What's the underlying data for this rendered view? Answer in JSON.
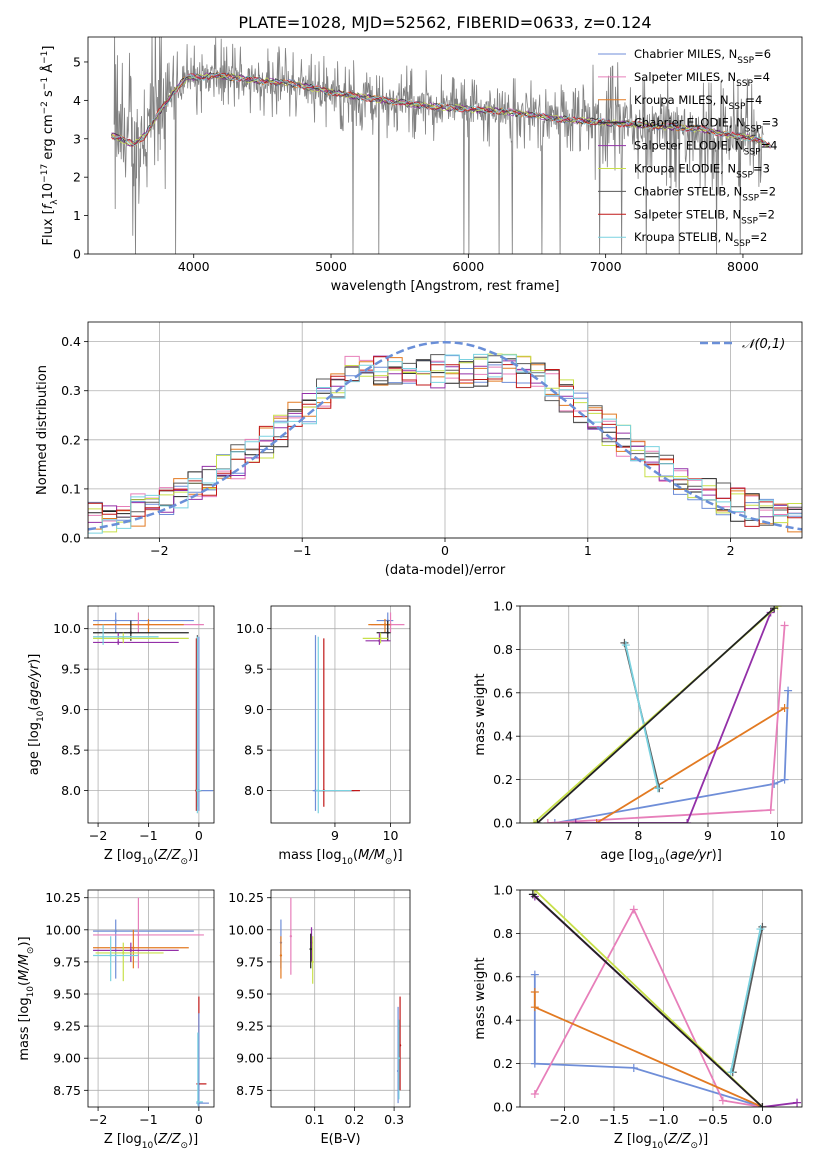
{
  "figure": {
    "title": "PLATE=1028, MJD=52562, FIBERID=0633, z=0.124"
  },
  "colors": {
    "data": "#808080",
    "series": [
      "#6f8ed8",
      "#e77fba",
      "#e27a22",
      "#222222",
      "#9330a8",
      "#c8e04a",
      "#5a5a5a",
      "#c01818",
      "#7ad2e0"
    ],
    "gauss": "#6a8fd8"
  },
  "series_names": [
    "Chabrier MILES, N_SSP=6",
    "Salpeter MILES, N_SSP=4",
    "Kroupa MILES, N_SSP=4",
    "Chabrier ELODIE, N_SSP=3",
    "Salpeter ELODIE, N_SSP=4",
    "Kroupa ELODIE, N_SSP=3",
    "Chabrier STELIB, N_SSP=2",
    "Salpeter STELIB, N_SSP=2",
    "Kroupa STELIB, N_SSP=2"
  ],
  "chart_data": [
    {
      "type": "line",
      "name": "spectrum",
      "xlabel": "wavelength [Angstrom, rest frame]",
      "ylabel": "Flux [f_λ 10^-17 erg cm^-2 s^-1 Å^-1]",
      "xlim": [
        3230,
        8430
      ],
      "ylim": [
        0,
        5.65
      ],
      "xticks": [
        4000,
        5000,
        6000,
        7000,
        8000
      ],
      "yticks": [
        0,
        1,
        2,
        3,
        4,
        5
      ],
      "grid": false,
      "legend": "right",
      "continuum_knots": {
        "x": [
          3400,
          3500,
          3560,
          3650,
          3750,
          3850,
          3950,
          4050,
          4150,
          4300,
          4500,
          4700,
          4900,
          5100,
          5300,
          5500,
          5700,
          5900,
          6100,
          6300,
          6500,
          6700,
          6900,
          7100,
          7300,
          7500,
          7700,
          7900,
          8100,
          8200
        ],
        "y": [
          3.1,
          2.95,
          2.85,
          3.1,
          3.7,
          4.2,
          4.6,
          4.6,
          4.65,
          4.6,
          4.5,
          4.45,
          4.3,
          4.15,
          4.05,
          3.95,
          3.85,
          3.8,
          3.75,
          3.7,
          3.6,
          3.5,
          3.45,
          3.4,
          3.35,
          3.3,
          3.25,
          3.1,
          3.0,
          2.8
        ]
      }
    },
    {
      "type": "bar",
      "name": "residual-histogram",
      "xlabel": "(data-model)/error",
      "ylabel": "Normed distribution",
      "xlim": [
        -2.5,
        2.5
      ],
      "ylim": [
        0,
        0.44
      ],
      "xticks": [
        -2,
        -1,
        0,
        1,
        2
      ],
      "yticks": [
        0.0,
        0.1,
        0.2,
        0.3,
        0.4
      ],
      "grid": true,
      "legend_label": "𝒩(0,1)",
      "bins": 50,
      "reference_curve": "normal(0,1)"
    },
    {
      "type": "scatter",
      "name": "age-vs-Z",
      "xlabel": "Z [log10(Z/Z⊙)]",
      "ylabel": "age  [log10(age/yr)]",
      "xlim": [
        -2.2,
        0.3
      ],
      "ylim": [
        7.6,
        10.28
      ],
      "xticks": [
        -2,
        -1,
        0
      ],
      "yticks": [
        8.0,
        8.5,
        9.0,
        9.5,
        10.0
      ],
      "grid": true,
      "points": [
        {
          "s": 0,
          "x": -1.65,
          "y": 10.1,
          "xe": [
            -2.1,
            -0.1
          ],
          "ye": [
            9.95,
            10.2
          ]
        },
        {
          "s": 1,
          "x": -1.2,
          "y": 10.05,
          "xe": [
            -2.1,
            0.1
          ],
          "ye": [
            9.95,
            10.2
          ]
        },
        {
          "s": 2,
          "x": -1.0,
          "y": 10.05,
          "xe": [
            -2.1,
            -0.3
          ],
          "ye": [
            9.95,
            10.12
          ]
        },
        {
          "s": 3,
          "x": -1.35,
          "y": 9.95,
          "xe": [
            -2.1,
            -0.2
          ],
          "ye": [
            9.85,
            10.1
          ]
        },
        {
          "s": 4,
          "x": -1.6,
          "y": 9.83,
          "xe": [
            -2.1,
            -0.4
          ],
          "ye": [
            9.8,
            9.95
          ]
        },
        {
          "s": 5,
          "x": -1.5,
          "y": 9.88,
          "xe": [
            -2.1,
            -0.2
          ],
          "ye": [
            9.82,
            9.95
          ]
        },
        {
          "s": 8,
          "x": -1.9,
          "y": 9.9,
          "xe": [
            -2.1,
            -0.8
          ],
          "ye": [
            9.8,
            10.05
          ]
        },
        {
          "s": 0,
          "x": 0.0,
          "y": 8.0,
          "xe": [
            -0.05,
            0.28
          ],
          "ye": [
            7.75,
            9.9
          ]
        },
        {
          "s": 6,
          "x": -0.03,
          "y": 8.0,
          "xe": [
            -0.05,
            0.05
          ],
          "ye": [
            7.8,
            9.92
          ]
        },
        {
          "s": 7,
          "x": -0.05,
          "y": 8.0,
          "xe": [
            -0.05,
            0.05
          ],
          "ye": [
            7.75,
            9.88
          ]
        },
        {
          "s": 8,
          "x": -0.03,
          "y": 8.0,
          "xe": [
            -0.05,
            0.05
          ],
          "ye": [
            7.72,
            9.9
          ]
        }
      ]
    },
    {
      "type": "scatter",
      "name": "age-vs-mass",
      "xlabel": "mass [log10(M/M⊙)]",
      "ylabel": "",
      "xlim": [
        7.85,
        10.35
      ],
      "ylim": [
        7.6,
        10.28
      ],
      "xticks": [
        9,
        10
      ],
      "yticks": [
        8.0,
        8.5,
        9.0,
        9.5,
        10.0
      ],
      "grid": true,
      "points": [
        {
          "s": 0,
          "x": 9.95,
          "y": 10.1,
          "xe": [
            9.75,
            10.05
          ],
          "ye": [
            9.95,
            10.2
          ]
        },
        {
          "s": 1,
          "x": 10.0,
          "y": 10.05,
          "xe": [
            9.65,
            10.25
          ],
          "ye": [
            9.95,
            10.2
          ]
        },
        {
          "s": 2,
          "x": 9.9,
          "y": 10.05,
          "xe": [
            9.6,
            10.0
          ],
          "ye": [
            9.95,
            10.12
          ]
        },
        {
          "s": 3,
          "x": 9.95,
          "y": 9.95,
          "xe": [
            9.75,
            10.0
          ],
          "ye": [
            9.85,
            10.1
          ]
        },
        {
          "s": 4,
          "x": 9.8,
          "y": 9.85,
          "xe": [
            9.55,
            10.0
          ],
          "ye": [
            9.8,
            9.95
          ]
        },
        {
          "s": 5,
          "x": 9.82,
          "y": 9.88,
          "xe": [
            9.5,
            9.95
          ],
          "ye": [
            9.82,
            9.95
          ]
        },
        {
          "s": 0,
          "x": 8.65,
          "y": 8.0,
          "xe": [
            8.6,
            9.35
          ],
          "ye": [
            7.75,
            9.92
          ]
        },
        {
          "s": 7,
          "x": 8.8,
          "y": 8.0,
          "xe": [
            8.7,
            9.45
          ],
          "ye": [
            7.8,
            9.88
          ]
        },
        {
          "s": 8,
          "x": 8.7,
          "y": 8.0,
          "xe": [
            8.65,
            9.3
          ],
          "ye": [
            7.72,
            9.9
          ]
        }
      ]
    },
    {
      "type": "line",
      "name": "mass-weight-vs-age",
      "xlabel": "age  [log10(age/yr)]",
      "ylabel": "mass weight",
      "xlim": [
        6.3,
        10.35
      ],
      "ylim": [
        0,
        1.0
      ],
      "xticks": [
        7,
        8,
        9,
        10
      ],
      "yticks": [
        0.0,
        0.2,
        0.4,
        0.6,
        0.8,
        1.0
      ],
      "grid": true,
      "series": [
        {
          "s": 0,
          "x": [
            10.15,
            10.1,
            9.95,
            6.8
          ],
          "y": [
            0.61,
            0.2,
            0.18,
            0.0
          ]
        },
        {
          "s": 1,
          "x": [
            10.1,
            9.9,
            6.7
          ],
          "y": [
            0.91,
            0.06,
            0.0
          ]
        },
        {
          "s": 2,
          "x": [
            10.1,
            7.4
          ],
          "y": [
            0.53,
            0.0
          ]
        },
        {
          "s": 6,
          "x": [
            7.8,
            8.3
          ],
          "y": [
            0.83,
            0.16
          ]
        },
        {
          "s": 8,
          "x": [
            7.82,
            8.28
          ],
          "y": [
            0.82,
            0.16
          ]
        },
        {
          "s": 4,
          "x": [
            9.9,
            8.7,
            7.1
          ],
          "y": [
            0.97,
            0.0,
            0.0
          ]
        },
        {
          "s": 5,
          "x": [
            10.0,
            6.5
          ],
          "y": [
            1.0,
            0.0
          ]
        },
        {
          "s": 3,
          "x": [
            9.95,
            6.55
          ],
          "y": [
            0.99,
            0.0
          ]
        }
      ]
    },
    {
      "type": "scatter",
      "name": "mass-vs-Z",
      "xlabel": "Z [log10(Z/Z⊙)]",
      "ylabel": "mass [log10(M/M⊙)]",
      "xlim": [
        -2.2,
        0.3
      ],
      "ylim": [
        8.62,
        10.31
      ],
      "xticks": [
        -2,
        -1,
        0
      ],
      "yticks": [
        8.75,
        9.0,
        9.25,
        9.5,
        9.75,
        10.0,
        10.25
      ],
      "grid": true,
      "points": [
        {
          "s": 0,
          "x": -1.65,
          "y": 9.99,
          "xe": [
            -2.1,
            -0.1
          ],
          "ye": [
            9.62,
            10.08
          ]
        },
        {
          "s": 1,
          "x": -1.2,
          "y": 9.96,
          "xe": [
            -2.1,
            0.1
          ],
          "ye": [
            9.7,
            10.25
          ]
        },
        {
          "s": 2,
          "x": -1.3,
          "y": 9.86,
          "xe": [
            -2.1,
            -0.2
          ],
          "ye": [
            9.7,
            10.0
          ]
        },
        {
          "s": 4,
          "x": -1.35,
          "y": 9.84,
          "xe": [
            -2.1,
            -0.4
          ],
          "ye": [
            9.75,
            9.9
          ]
        },
        {
          "s": 5,
          "x": -1.5,
          "y": 9.82,
          "xe": [
            -2.05,
            -0.7
          ],
          "ye": [
            9.6,
            9.9
          ]
        },
        {
          "s": 8,
          "x": -1.75,
          "y": 9.8,
          "xe": [
            -2.1,
            -1.2
          ],
          "ye": [
            9.6,
            9.95
          ]
        },
        {
          "s": 7,
          "x": 0.0,
          "y": 8.8,
          "xe": [
            -0.05,
            0.15
          ],
          "ye": [
            8.75,
            9.48
          ]
        },
        {
          "s": 0,
          "x": 0.0,
          "y": 8.65,
          "xe": [
            -0.05,
            0.2
          ],
          "ye": [
            8.62,
            9.35
          ]
        },
        {
          "s": 8,
          "x": -0.02,
          "y": 8.66,
          "xe": [
            -0.05,
            0.08
          ],
          "ye": [
            8.63,
            9.2
          ]
        }
      ]
    },
    {
      "type": "scatter",
      "name": "mass-vs-EBV",
      "xlabel": "E(B-V)",
      "ylabel": "",
      "xlim": [
        -0.01,
        0.34
      ],
      "ylim": [
        8.62,
        10.31
      ],
      "xticks": [
        0.1,
        0.2,
        0.3
      ],
      "yticks": [
        8.75,
        9.0,
        9.25,
        9.5,
        9.75,
        10.0,
        10.25
      ],
      "grid": true,
      "points": [
        {
          "s": 0,
          "x": 0.015,
          "y": 9.9,
          "ye": [
            9.7,
            10.08
          ]
        },
        {
          "s": 1,
          "x": 0.04,
          "y": 9.95,
          "ye": [
            9.65,
            10.25
          ]
        },
        {
          "s": 2,
          "x": 0.015,
          "y": 9.8,
          "ye": [
            9.62,
            9.95
          ]
        },
        {
          "s": 4,
          "x": 0.092,
          "y": 9.9,
          "ye": [
            9.75,
            10.02
          ]
        },
        {
          "s": 5,
          "x": 0.095,
          "y": 9.75,
          "ye": [
            9.58,
            9.95
          ]
        },
        {
          "s": 3,
          "x": 0.09,
          "y": 9.85,
          "ye": [
            9.7,
            9.97
          ]
        },
        {
          "s": 7,
          "x": 0.315,
          "y": 9.1,
          "ye": [
            8.75,
            9.48
          ]
        },
        {
          "s": 0,
          "x": 0.31,
          "y": 8.9,
          "ye": [
            8.65,
            9.4
          ]
        },
        {
          "s": 8,
          "x": 0.312,
          "y": 9.0,
          "ye": [
            8.68,
            9.3
          ]
        }
      ]
    },
    {
      "type": "line",
      "name": "mass-weight-vs-Z",
      "xlabel": "Z [log10(Z/Z⊙)]",
      "ylabel": "mass weight",
      "xlim": [
        -2.45,
        0.4
      ],
      "ylim": [
        0,
        1.0
      ],
      "xticks": [
        -2.0,
        -1.5,
        -1.0,
        -0.5,
        0.0
      ],
      "yticks": [
        0.0,
        0.2,
        0.4,
        0.6,
        0.8,
        1.0
      ],
      "grid": true,
      "series": [
        {
          "s": 0,
          "x": [
            -2.3,
            -2.3,
            -1.3,
            0.0
          ],
          "y": [
            0.61,
            0.2,
            0.18,
            0.0
          ]
        },
        {
          "s": 1,
          "x": [
            -2.3,
            -1.3,
            -0.4,
            0.0
          ],
          "y": [
            0.06,
            0.91,
            0.03,
            0.0
          ]
        },
        {
          "s": 2,
          "x": [
            -2.3,
            -2.3,
            0.0
          ],
          "y": [
            0.53,
            0.46,
            0.0
          ]
        },
        {
          "s": 6,
          "x": [
            0.0,
            -0.3
          ],
          "y": [
            0.83,
            0.16
          ]
        },
        {
          "s": 8,
          "x": [
            -0.02,
            -0.32
          ],
          "y": [
            0.82,
            0.16
          ]
        },
        {
          "s": 4,
          "x": [
            -2.3,
            0.0,
            0.35
          ],
          "y": [
            0.97,
            0.0,
            0.02
          ]
        },
        {
          "s": 5,
          "x": [
            -2.3,
            0.0
          ],
          "y": [
            1.0,
            0.0
          ]
        },
        {
          "s": 3,
          "x": [
            -2.32,
            0.0
          ],
          "y": [
            0.98,
            0.0
          ]
        }
      ]
    }
  ]
}
